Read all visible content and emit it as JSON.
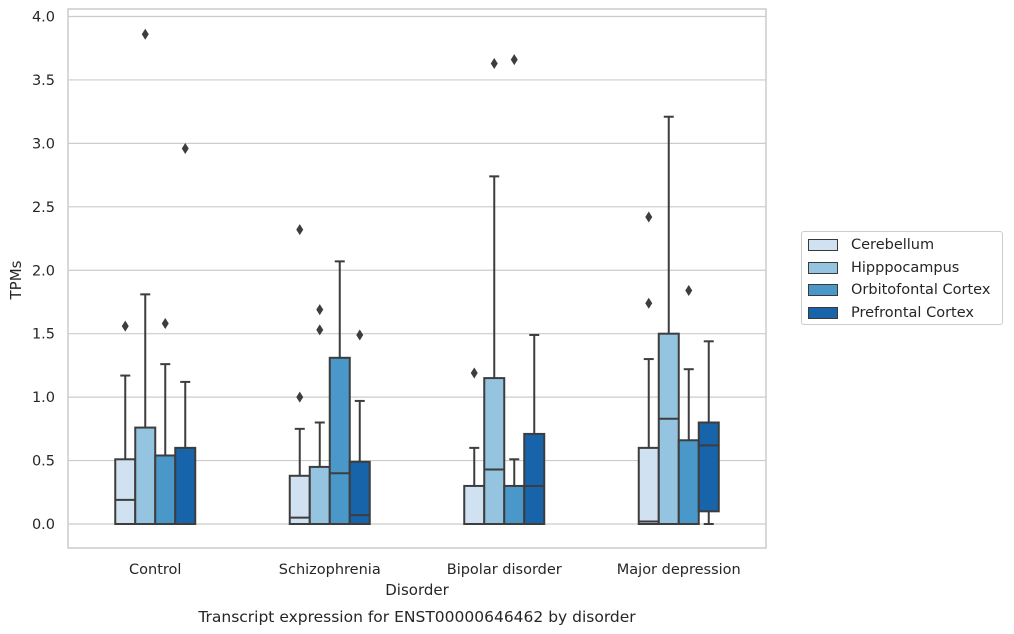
{
  "chart_data": {
    "type": "box",
    "title": "Transcript expression for ENST00000646462 by disorder",
    "xlabel": "Disorder",
    "ylabel": "TPMs",
    "ylim": [
      -0.18,
      4.05
    ],
    "yticks": [
      "0.0",
      "0.5",
      "1.0",
      "1.5",
      "2.0",
      "2.5",
      "3.0",
      "3.5",
      "4.0"
    ],
    "grid": "horizontal",
    "legend_position": "right",
    "categories": [
      "Control",
      "Schizophrenia",
      "Bipolar disorder",
      "Major depression"
    ],
    "series": [
      {
        "name": "Cerebellum",
        "color": "#d0e1f2",
        "boxes": [
          {
            "whislo": 0.0,
            "q1": 0.0,
            "med": 0.19,
            "q3": 0.51,
            "whishi": 1.17,
            "fliers": [
              1.56
            ]
          },
          {
            "whislo": 0.0,
            "q1": 0.0,
            "med": 0.05,
            "q3": 0.38,
            "whishi": 0.75,
            "fliers": [
              1.0,
              2.32
            ]
          },
          {
            "whislo": 0.0,
            "q1": 0.0,
            "med": 0.0,
            "q3": 0.3,
            "whishi": 0.6,
            "fliers": [
              1.19
            ]
          },
          {
            "whislo": 0.0,
            "q1": 0.0,
            "med": 0.02,
            "q3": 0.6,
            "whishi": 1.3,
            "fliers": [
              1.74,
              2.42
            ]
          }
        ]
      },
      {
        "name": "Hipppocampus",
        "color": "#94c4df",
        "boxes": [
          {
            "whislo": 0.0,
            "q1": 0.0,
            "med": 0.0,
            "q3": 0.76,
            "whishi": 1.81,
            "fliers": [
              3.86
            ]
          },
          {
            "whislo": 0.0,
            "q1": 0.0,
            "med": 0.0,
            "q3": 0.45,
            "whishi": 0.8,
            "fliers": [
              1.53,
              1.69
            ]
          },
          {
            "whislo": 0.0,
            "q1": 0.0,
            "med": 0.43,
            "q3": 1.15,
            "whishi": 2.74,
            "fliers": [
              3.63
            ]
          },
          {
            "whislo": 0.0,
            "q1": 0.0,
            "med": 0.83,
            "q3": 1.5,
            "whishi": 3.21,
            "fliers": []
          }
        ]
      },
      {
        "name": "Orbitofontal Cortex",
        "color": "#4a98c9",
        "boxes": [
          {
            "whislo": 0.0,
            "q1": 0.0,
            "med": 0.0,
            "q3": 0.54,
            "whishi": 1.26,
            "fliers": [
              1.58
            ]
          },
          {
            "whislo": 0.0,
            "q1": 0.0,
            "med": 0.4,
            "q3": 1.31,
            "whishi": 2.07,
            "fliers": []
          },
          {
            "whislo": 0.0,
            "q1": 0.0,
            "med": 0.0,
            "q3": 0.3,
            "whishi": 0.51,
            "fliers": [
              3.66
            ]
          },
          {
            "whislo": 0.0,
            "q1": 0.0,
            "med": 0.0,
            "q3": 0.66,
            "whishi": 1.22,
            "fliers": [
              1.84
            ]
          }
        ]
      },
      {
        "name": "Prefrontal Cortex",
        "color": "#1764ab",
        "boxes": [
          {
            "whislo": 0.0,
            "q1": 0.0,
            "med": 0.0,
            "q3": 0.6,
            "whishi": 1.12,
            "fliers": [
              2.96
            ]
          },
          {
            "whislo": 0.0,
            "q1": 0.0,
            "med": 0.07,
            "q3": 0.49,
            "whishi": 0.97,
            "fliers": [
              1.49
            ]
          },
          {
            "whislo": 0.0,
            "q1": 0.0,
            "med": 0.3,
            "q3": 0.71,
            "whishi": 1.49,
            "fliers": []
          },
          {
            "whislo": 0.0,
            "q1": 0.1,
            "med": 0.62,
            "q3": 0.8,
            "whishi": 1.44,
            "fliers": []
          }
        ]
      }
    ]
  }
}
